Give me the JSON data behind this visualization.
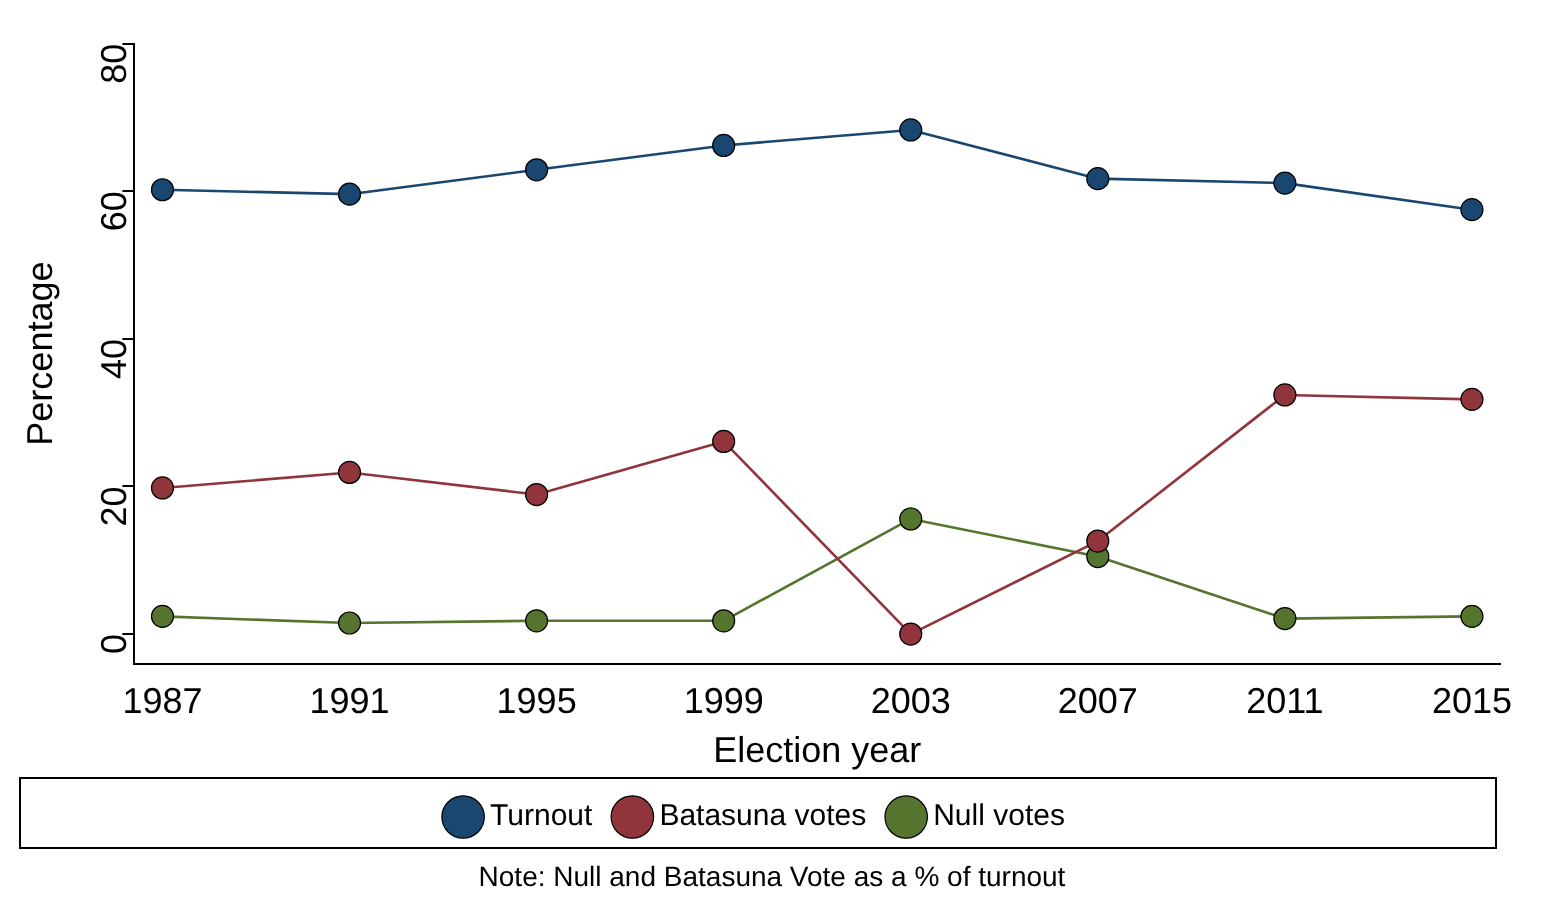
{
  "chart_data": {
    "type": "line",
    "xlabel": "Election year",
    "ylabel": "Percentage",
    "x": [
      1987,
      1991,
      1995,
      1999,
      2003,
      2007,
      2011,
      2015
    ],
    "xlim": [
      1986.4,
      2015.6
    ],
    "xticks": [
      1987,
      1991,
      1995,
      1999,
      2003,
      2007,
      2011,
      2015
    ],
    "ylim": [
      -4,
      80
    ],
    "yticks": [
      0,
      20,
      40,
      60,
      80
    ],
    "series": [
      {
        "name": "Turnout",
        "color": "#1a476f",
        "values": [
          60.2,
          59.6,
          62.9,
          66.2,
          68.3,
          61.7,
          61.1,
          57.5
        ]
      },
      {
        "name": "Batasuna votes",
        "color": "#90353b",
        "values": [
          19.8,
          21.9,
          18.9,
          26.1,
          0,
          12.6,
          32.4,
          31.8
        ]
      },
      {
        "name": "Null votes",
        "color": "#55752f",
        "values": [
          2.4,
          1.5,
          1.8,
          1.8,
          15.6,
          10.5,
          2.1,
          2.4
        ]
      }
    ],
    "grid": false,
    "legend": "bottom",
    "marker": "circle",
    "line_style": "solid",
    "annotations": [
      "Note: Null and Batasuna Vote as a % of turnout"
    ]
  }
}
